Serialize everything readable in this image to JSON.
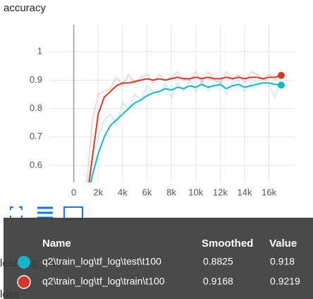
{
  "chart_data": {
    "type": "line",
    "title": "accuracy",
    "x": [
      1000,
      1500,
      2000,
      2500,
      3000,
      3500,
      4000,
      4500,
      5000,
      5500,
      6000,
      6500,
      7000,
      7500,
      8000,
      8500,
      9000,
      9500,
      10000,
      10500,
      11000,
      11500,
      12000,
      12500,
      13000,
      13500,
      14000,
      14500,
      15000,
      15500,
      16000,
      16500,
      17000
    ],
    "series": [
      {
        "name": "q2\\train_log\\tf_log\\test\\t100",
        "color": "#12b5cb",
        "values": [
          0.45,
          0.56,
          0.64,
          0.7,
          0.74,
          0.76,
          0.78,
          0.8,
          0.82,
          0.83,
          0.845,
          0.855,
          0.86,
          0.87,
          0.865,
          0.875,
          0.87,
          0.88,
          0.875,
          0.885,
          0.875,
          0.88,
          0.885,
          0.87,
          0.88,
          0.885,
          0.875,
          0.88,
          0.885,
          0.89,
          0.89,
          0.885,
          0.8825
        ],
        "raw_values": [
          0.5,
          0.62,
          0.7,
          0.76,
          0.78,
          0.74,
          0.82,
          0.8,
          0.85,
          0.83,
          0.88,
          0.86,
          0.85,
          0.89,
          0.84,
          0.89,
          0.86,
          0.9,
          0.86,
          0.9,
          0.86,
          0.89,
          0.9,
          0.85,
          0.89,
          0.9,
          0.86,
          0.89,
          0.9,
          0.91,
          0.88,
          0.84,
          0.918
        ]
      },
      {
        "name": "q2\\train_log\\tf_log\\train\\t100",
        "color": "#d03a2a",
        "values": [
          0.45,
          0.62,
          0.78,
          0.84,
          0.86,
          0.88,
          0.89,
          0.89,
          0.895,
          0.9,
          0.905,
          0.9,
          0.905,
          0.9,
          0.905,
          0.91,
          0.905,
          0.905,
          0.91,
          0.905,
          0.91,
          0.905,
          0.905,
          0.91,
          0.905,
          0.91,
          0.905,
          0.91,
          0.91,
          0.905,
          0.91,
          0.91,
          0.9168
        ],
        "raw_values": [
          0.5,
          0.75,
          0.85,
          0.86,
          0.87,
          0.91,
          0.88,
          0.92,
          0.89,
          0.91,
          0.92,
          0.89,
          0.92,
          0.9,
          0.91,
          0.93,
          0.9,
          0.9,
          0.93,
          0.89,
          0.93,
          0.9,
          0.89,
          0.93,
          0.9,
          0.92,
          0.89,
          0.93,
          0.92,
          0.9,
          0.92,
          0.9,
          0.9219
        ]
      }
    ],
    "xlim": [
      -2000,
      18100
    ],
    "xticks": [
      0,
      {
        "value": 2000,
        "label": "2k"
      },
      {
        "value": 4000,
        "label": "4k"
      },
      {
        "value": 6000,
        "label": "6k"
      },
      {
        "value": 8000,
        "label": "8k"
      },
      {
        "value": 10000,
        "label": "10k"
      },
      {
        "value": 12000,
        "label": "12k"
      },
      {
        "value": 14000,
        "label": "14k"
      },
      {
        "value": 16000,
        "label": "16k"
      }
    ],
    "ylim": [
      0.54,
      1.095
    ],
    "yticks": [
      0.6,
      0.7,
      0.8,
      0.9,
      1
    ],
    "grid": true
  },
  "other_cards": [
    "learning_rate",
    "loss"
  ],
  "tooltip": {
    "headers": [
      "Name",
      "Smoothed",
      "Value"
    ],
    "rows": [
      [
        "q2\\train_log\\tf_log\\test\\t100",
        "0.8825",
        "0.918"
      ],
      [
        "q2\\train_log\\tf_log\\train\\t100",
        "0.9168",
        "0.9219"
      ]
    ]
  }
}
